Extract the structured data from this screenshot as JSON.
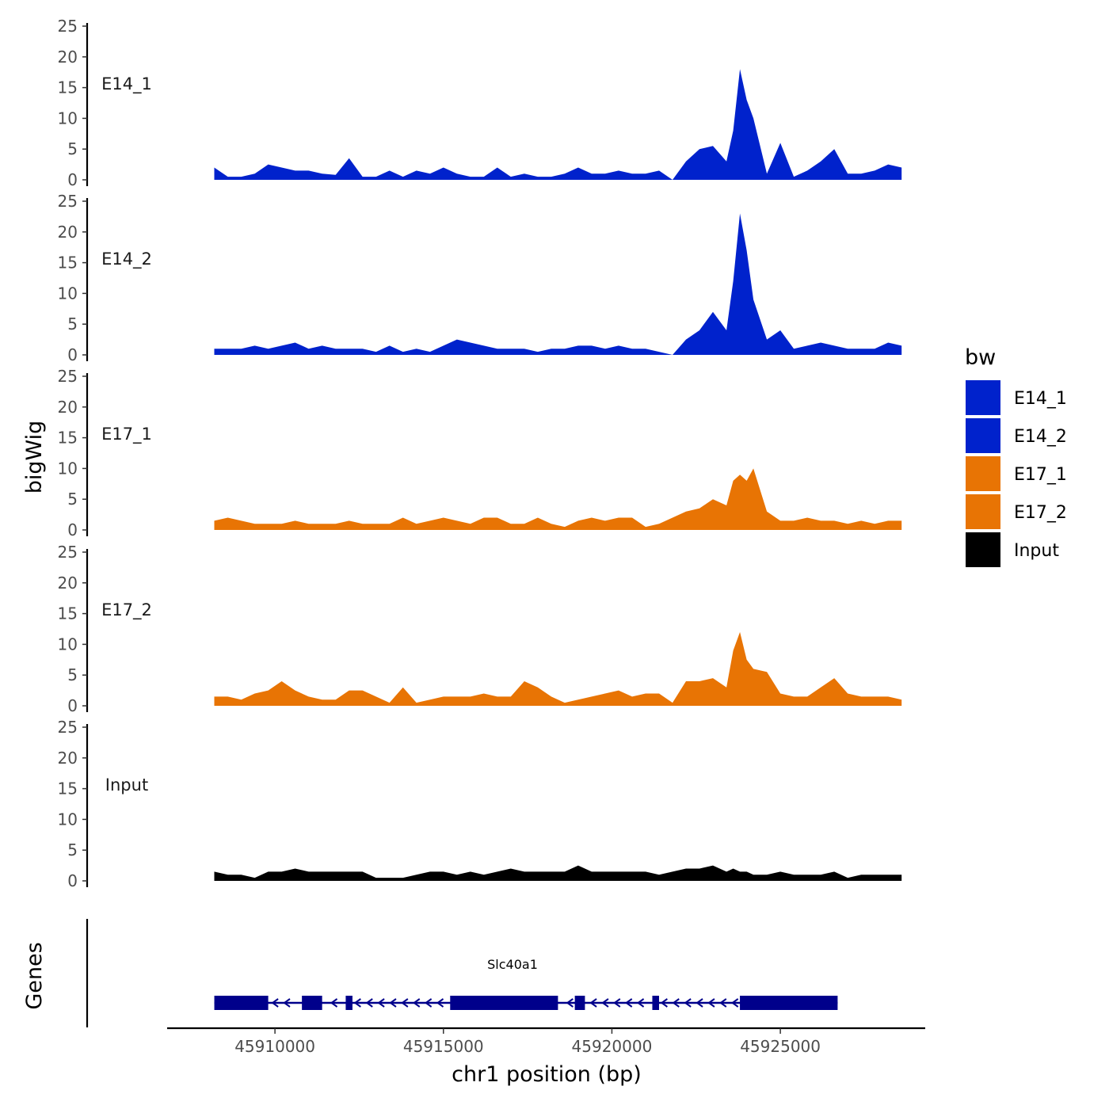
{
  "chart_data": {
    "type": "area",
    "title": "",
    "ylabel": "bigWig",
    "xlabel": "chr1 position (bp)",
    "genes_label": "Genes",
    "ylim": [
      0,
      25
    ],
    "y_ticks": [
      "0",
      "5",
      "10",
      "15",
      "20",
      "25"
    ],
    "xlim": [
      45906800,
      45929300
    ],
    "x_ticks": [
      {
        "value": 45910000,
        "label": "45910000"
      },
      {
        "value": 45915000,
        "label": "45915000"
      },
      {
        "value": 45920000,
        "label": "45920000"
      },
      {
        "value": 45925000,
        "label": "45925000"
      }
    ],
    "x": [
      45908200,
      45908600,
      45909000,
      45909400,
      45909800,
      45910200,
      45910600,
      45911000,
      45911400,
      45911800,
      45912200,
      45912600,
      45913000,
      45913400,
      45913800,
      45914200,
      45914600,
      45915000,
      45915400,
      45915800,
      45916200,
      45916600,
      45917000,
      45917400,
      45917800,
      45918200,
      45918600,
      45919000,
      45919400,
      45919800,
      45920200,
      45920600,
      45921000,
      45921400,
      45921800,
      45922200,
      45922600,
      45923000,
      45923400,
      45923600,
      45923800,
      45924000,
      45924200,
      45924600,
      45925000,
      45925400,
      45925800,
      45926200,
      45926600,
      45927000,
      45927400,
      45927800,
      45928200,
      45928600
    ],
    "series": [
      {
        "name": "E14_1",
        "color": "#0022CC",
        "values": [
          2.0,
          0.5,
          0.5,
          1.0,
          2.5,
          2.0,
          1.5,
          1.5,
          1.0,
          0.8,
          3.5,
          0.5,
          0.5,
          1.5,
          0.5,
          1.5,
          1.0,
          2.0,
          1.0,
          0.5,
          0.5,
          2.0,
          0.5,
          1.0,
          0.5,
          0.5,
          1.0,
          2.0,
          1.0,
          1.0,
          1.5,
          1.0,
          1.0,
          1.5,
          0.0,
          3.0,
          5.0,
          5.5,
          3.0,
          8.0,
          18.0,
          13.0,
          10.0,
          1.0,
          6.0,
          0.5,
          1.5,
          3.0,
          5.0,
          1.0,
          1.0,
          1.5,
          2.5,
          2.0
        ]
      },
      {
        "name": "E14_2",
        "color": "#0022CC",
        "values": [
          1.0,
          1.0,
          1.0,
          1.5,
          1.0,
          1.5,
          2.0,
          1.0,
          1.5,
          1.0,
          1.0,
          1.0,
          0.5,
          1.5,
          0.5,
          1.0,
          0.5,
          1.5,
          2.5,
          2.0,
          1.5,
          1.0,
          1.0,
          1.0,
          0.5,
          1.0,
          1.0,
          1.5,
          1.5,
          1.0,
          1.5,
          1.0,
          1.0,
          0.5,
          0.0,
          2.5,
          4.0,
          7.0,
          4.0,
          12.0,
          23.0,
          17.0,
          9.0,
          2.5,
          4.0,
          1.0,
          1.5,
          2.0,
          1.5,
          1.0,
          1.0,
          1.0,
          2.0,
          1.5
        ]
      },
      {
        "name": "E17_1",
        "color": "#E87404",
        "values": [
          1.5,
          2.0,
          1.5,
          1.0,
          1.0,
          1.0,
          1.5,
          1.0,
          1.0,
          1.0,
          1.5,
          1.0,
          1.0,
          1.0,
          2.0,
          1.0,
          1.5,
          2.0,
          1.5,
          1.0,
          2.0,
          2.0,
          1.0,
          1.0,
          2.0,
          1.0,
          0.5,
          1.5,
          2.0,
          1.5,
          2.0,
          2.0,
          0.5,
          1.0,
          2.0,
          3.0,
          3.5,
          5.0,
          4.0,
          8.0,
          9.0,
          8.0,
          10.0,
          3.0,
          1.5,
          1.5,
          2.0,
          1.5,
          1.5,
          1.0,
          1.5,
          1.0,
          1.5,
          1.5
        ]
      },
      {
        "name": "E17_2",
        "color": "#E87404",
        "values": [
          1.5,
          1.5,
          1.0,
          2.0,
          2.5,
          4.0,
          2.5,
          1.5,
          1.0,
          1.0,
          2.5,
          2.5,
          1.5,
          0.5,
          3.0,
          0.5,
          1.0,
          1.5,
          1.5,
          1.5,
          2.0,
          1.5,
          1.5,
          4.0,
          3.0,
          1.5,
          0.5,
          1.0,
          1.5,
          2.0,
          2.5,
          1.5,
          2.0,
          2.0,
          0.5,
          4.0,
          4.0,
          4.5,
          3.0,
          9.0,
          12.0,
          7.5,
          6.0,
          5.5,
          2.0,
          1.5,
          1.5,
          3.0,
          4.5,
          2.0,
          1.5,
          1.5,
          1.5,
          1.0
        ]
      },
      {
        "name": "Input",
        "color": "#000000",
        "values": [
          1.5,
          1.0,
          1.0,
          0.5,
          1.5,
          1.5,
          2.0,
          1.5,
          1.5,
          1.5,
          1.5,
          1.5,
          0.5,
          0.5,
          0.5,
          1.0,
          1.5,
          1.5,
          1.0,
          1.5,
          1.0,
          1.5,
          2.0,
          1.5,
          1.5,
          1.5,
          1.5,
          2.5,
          1.5,
          1.5,
          1.5,
          1.5,
          1.5,
          1.0,
          1.5,
          2.0,
          2.0,
          2.5,
          1.5,
          2.0,
          1.5,
          1.5,
          1.0,
          1.0,
          1.5,
          1.0,
          1.0,
          1.0,
          1.5,
          0.5,
          1.0,
          1.0,
          1.0,
          1.0
        ]
      }
    ],
    "legend": {
      "title": "bw",
      "position": "right",
      "entries": [
        {
          "label": "E14_1",
          "color": "#0022CC"
        },
        {
          "label": "E14_2",
          "color": "#0022CC"
        },
        {
          "label": "E17_1",
          "color": "#E87404"
        },
        {
          "label": "E17_2",
          "color": "#E87404"
        },
        {
          "label": "Input",
          "color": "#000000"
        }
      ]
    },
    "gene": {
      "name": "Slc40a1",
      "strand": "-",
      "color": "#00008B",
      "start": 45908200,
      "end": 45926700,
      "exons": [
        [
          45908200,
          45909800
        ],
        [
          45910800,
          45911400
        ],
        [
          45912100,
          45912300
        ],
        [
          45915200,
          45918400
        ],
        [
          45918900,
          45919200
        ],
        [
          45921200,
          45921400
        ],
        [
          45923800,
          45926700
        ]
      ]
    }
  }
}
